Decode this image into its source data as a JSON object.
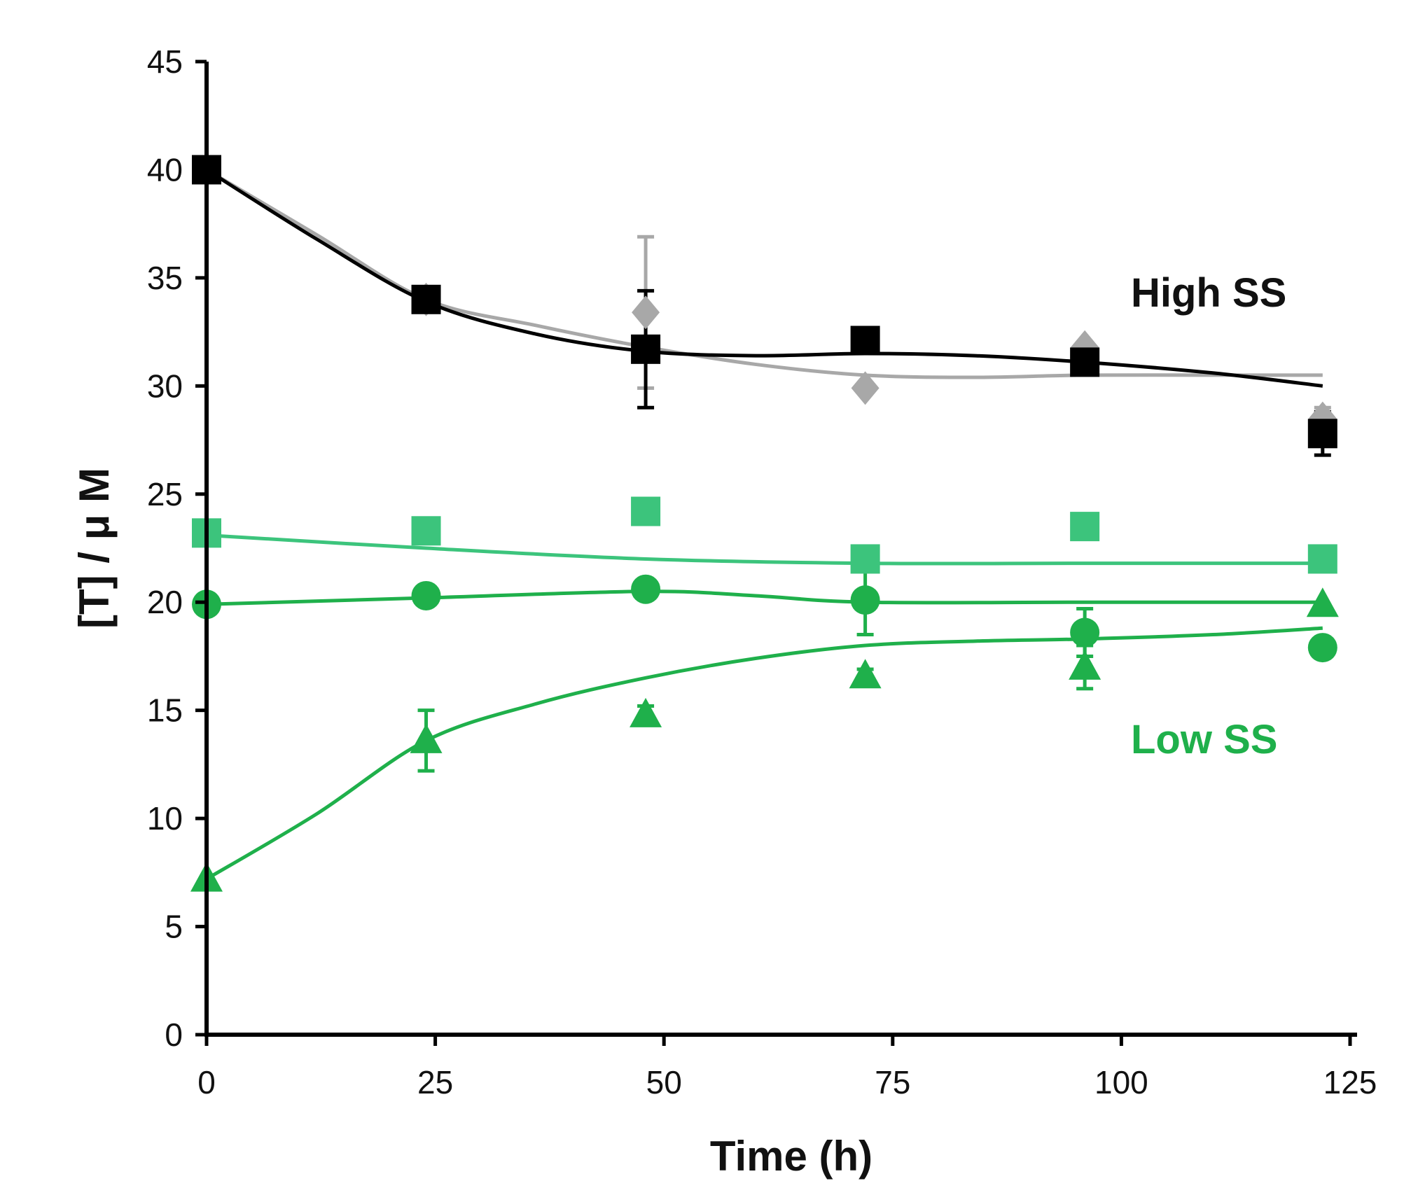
{
  "chart_data": {
    "type": "scatter",
    "title": "",
    "xlabel": "Time (h)",
    "ylabel": "[T] / μ M",
    "xlim": [
      0,
      125
    ],
    "ylim": [
      0,
      45
    ],
    "xticks": [
      0,
      25,
      50,
      75,
      100,
      125
    ],
    "yticks": [
      0,
      5,
      10,
      15,
      20,
      25,
      30,
      35,
      40,
      45
    ],
    "grid": false,
    "legend": "none",
    "annotations": [
      {
        "text": "High SS",
        "x": 110,
        "y": 34.5,
        "color": "#111111"
      },
      {
        "text": "Low SS",
        "x": 110,
        "y": 13.5,
        "color": "#1fb04b"
      }
    ],
    "series": [
      {
        "name": "High SS (diamond)",
        "marker": "diamond",
        "color": "#a8a8a8",
        "x": [
          0,
          24,
          48,
          72,
          96,
          122
        ],
        "y": [
          40.0,
          34.0,
          33.4,
          29.9,
          31.8,
          28.5
        ],
        "err": [
          0,
          0,
          3.5,
          0,
          0,
          0.5
        ],
        "fit": [
          [
            0,
            40.0
          ],
          [
            12,
            37.0
          ],
          [
            24,
            34.0
          ],
          [
            36,
            32.8
          ],
          [
            48,
            31.8
          ],
          [
            60,
            31.0
          ],
          [
            72,
            30.5
          ],
          [
            84,
            30.4
          ],
          [
            96,
            30.5
          ],
          [
            110,
            30.5
          ],
          [
            122,
            30.5
          ]
        ]
      },
      {
        "name": "High SS (square)",
        "marker": "square",
        "color": "#000000",
        "x": [
          0,
          24,
          48,
          72,
          96,
          122
        ],
        "y": [
          40.0,
          34.0,
          31.7,
          32.1,
          31.1,
          27.8
        ],
        "err": [
          0,
          0,
          2.7,
          0,
          0,
          1.0
        ],
        "fit": [
          [
            0,
            40.0
          ],
          [
            12,
            36.8
          ],
          [
            24,
            33.9
          ],
          [
            36,
            32.4
          ],
          [
            48,
            31.6
          ],
          [
            60,
            31.4
          ],
          [
            72,
            31.5
          ],
          [
            84,
            31.4
          ],
          [
            96,
            31.1
          ],
          [
            110,
            30.6
          ],
          [
            122,
            30.0
          ]
        ]
      },
      {
        "name": "Low SS (square)",
        "marker": "square",
        "color": "#3cc47c",
        "x": [
          0,
          24,
          48,
          72,
          96,
          122
        ],
        "y": [
          23.2,
          23.3,
          24.2,
          22.0,
          23.5,
          22.0
        ],
        "err": [
          0,
          0,
          0,
          0,
          0,
          0
        ],
        "fit": [
          [
            0,
            23.1
          ],
          [
            24,
            22.5
          ],
          [
            48,
            22.0
          ],
          [
            72,
            21.8
          ],
          [
            96,
            21.8
          ],
          [
            122,
            21.8
          ]
        ]
      },
      {
        "name": "Low SS (circle)",
        "marker": "circle",
        "color": "#1fb04b",
        "x": [
          0,
          24,
          48,
          72,
          96,
          122
        ],
        "y": [
          19.9,
          20.3,
          20.6,
          20.1,
          18.6,
          17.9
        ],
        "err": [
          0,
          0,
          0,
          1.6,
          1.1,
          0
        ],
        "fit": [
          [
            0,
            19.9
          ],
          [
            24,
            20.2
          ],
          [
            48,
            20.5
          ],
          [
            60,
            20.3
          ],
          [
            72,
            20.0
          ],
          [
            96,
            20.0
          ],
          [
            122,
            20.0
          ]
        ]
      },
      {
        "name": "Low SS (triangle)",
        "marker": "triangle",
        "color": "#1fb04b",
        "x": [
          0,
          24,
          48,
          72,
          96,
          122
        ],
        "y": [
          7.2,
          13.6,
          14.8,
          16.6,
          17.0,
          19.9
        ],
        "err": [
          0,
          1.4,
          0.4,
          0.3,
          1.0,
          0
        ],
        "fit": [
          [
            0,
            7.2
          ],
          [
            12,
            10.2
          ],
          [
            24,
            13.6
          ],
          [
            36,
            15.3
          ],
          [
            48,
            16.5
          ],
          [
            60,
            17.4
          ],
          [
            72,
            18.0
          ],
          [
            84,
            18.2
          ],
          [
            96,
            18.3
          ],
          [
            110,
            18.5
          ],
          [
            122,
            18.8
          ]
        ]
      }
    ]
  }
}
